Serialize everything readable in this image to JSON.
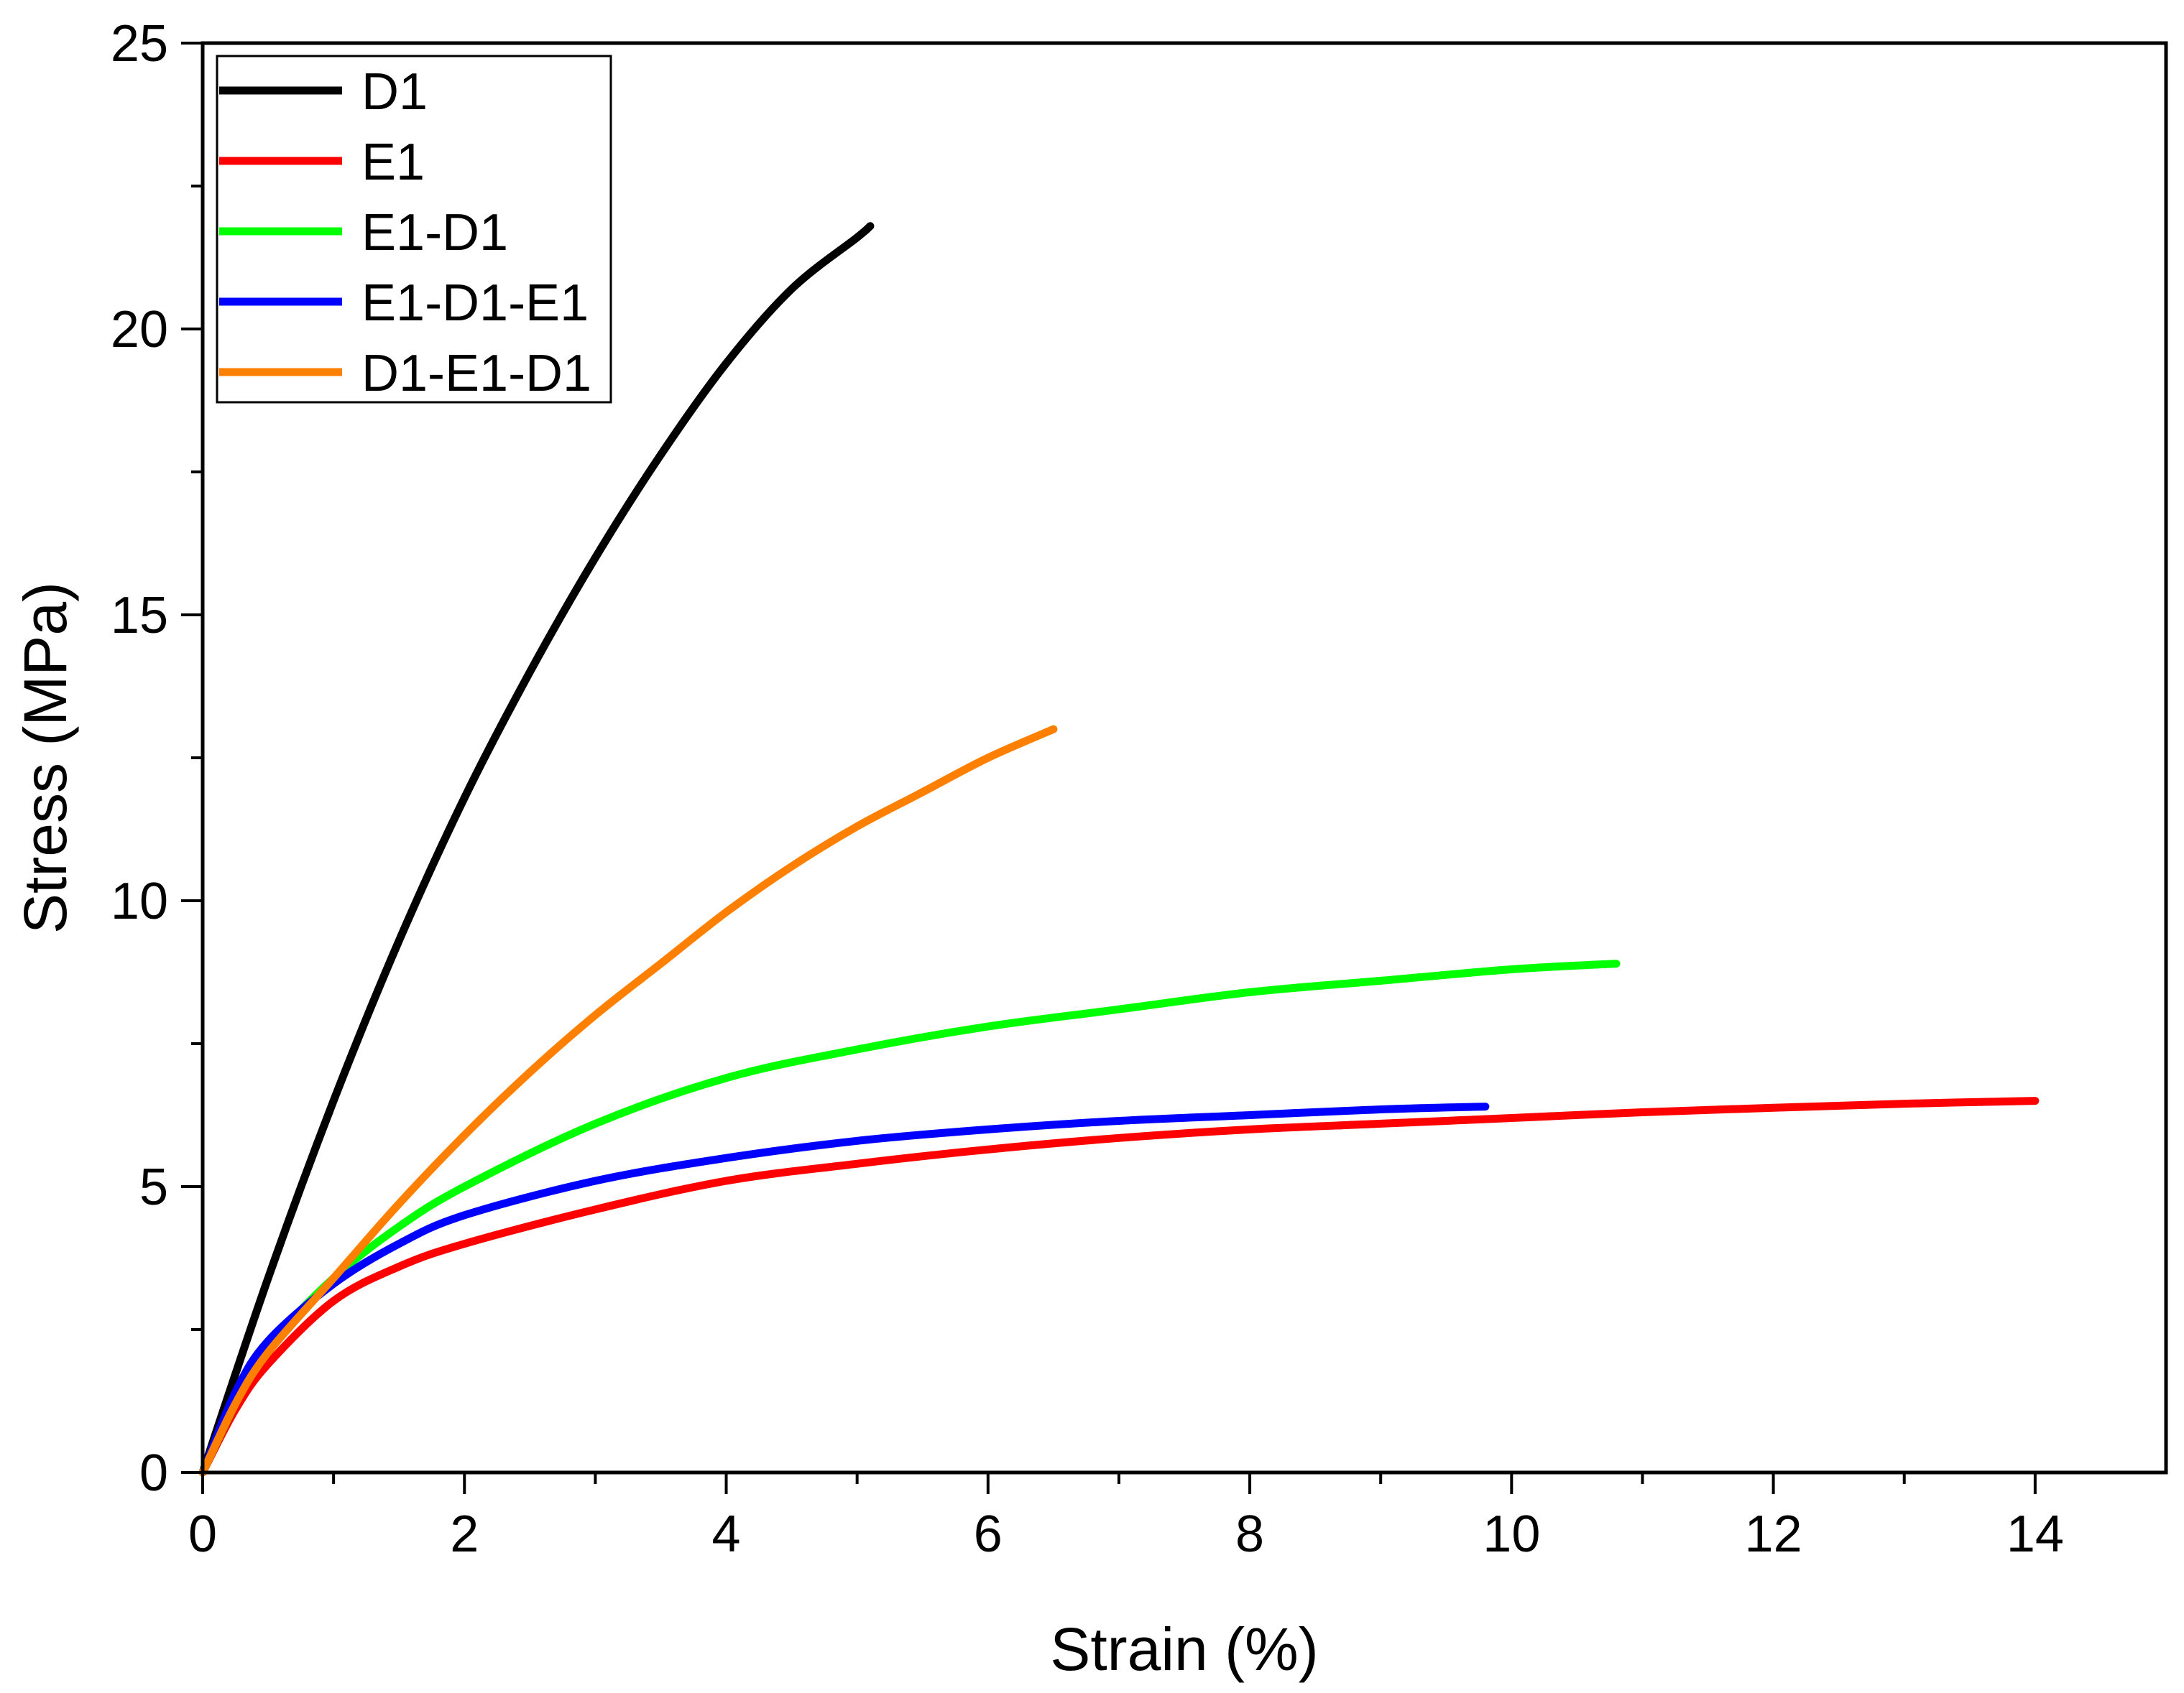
{
  "chart_data": {
    "type": "line",
    "title": "",
    "xlabel": "Strain (%)",
    "ylabel": "Stress (MPa)",
    "xlim": [
      0,
      15
    ],
    "ylim": [
      0,
      25
    ],
    "xticks": [
      0,
      2,
      4,
      6,
      8,
      10,
      12,
      14
    ],
    "yticks": [
      0,
      5,
      10,
      15,
      20,
      25
    ],
    "xtick_labels": [
      "0",
      "2",
      "4",
      "6",
      "8",
      "10",
      "12",
      "14"
    ],
    "ytick_labels": [
      "0",
      "5",
      "10",
      "15",
      "20",
      "25"
    ],
    "grid": false,
    "legend_position": "top-left",
    "series": [
      {
        "name": "D1",
        "color": "#000000",
        "x": [
          0,
          0.5,
          1.0,
          1.5,
          2.0,
          2.5,
          3.0,
          3.5,
          4.0,
          4.5,
          5.0,
          5.1
        ],
        "y": [
          0,
          3.4,
          6.5,
          9.3,
          11.8,
          14.0,
          16.0,
          17.8,
          19.4,
          20.7,
          21.6,
          21.8
        ]
      },
      {
        "name": "E1",
        "color": "#ff0000",
        "x": [
          0,
          0.25,
          0.5,
          1.0,
          1.5,
          2.0,
          3.0,
          4.0,
          5.0,
          6.0,
          7.0,
          8.0,
          9.0,
          10.0,
          11.0,
          12.0,
          13.0,
          14.0
        ],
        "y": [
          0,
          1.1,
          1.9,
          3.0,
          3.6,
          4.0,
          4.6,
          5.1,
          5.4,
          5.65,
          5.85,
          6.0,
          6.1,
          6.2,
          6.3,
          6.38,
          6.45,
          6.5
        ]
      },
      {
        "name": "E1-D1",
        "color": "#00ff00",
        "x": [
          0,
          0.25,
          0.5,
          1.0,
          1.5,
          2.0,
          3.0,
          4.0,
          5.0,
          6.0,
          7.0,
          8.0,
          9.0,
          10.0,
          10.8
        ],
        "y": [
          0,
          1.2,
          2.2,
          3.4,
          4.3,
          5.0,
          6.1,
          6.9,
          7.4,
          7.8,
          8.1,
          8.4,
          8.6,
          8.8,
          8.9
        ]
      },
      {
        "name": "E1-D1-E1",
        "color": "#0000ff",
        "x": [
          0,
          0.25,
          0.5,
          1.0,
          1.5,
          2.0,
          3.0,
          4.0,
          5.0,
          6.0,
          7.0,
          8.0,
          9.0,
          9.8
        ],
        "y": [
          0,
          1.4,
          2.3,
          3.3,
          4.0,
          4.5,
          5.1,
          5.5,
          5.8,
          6.0,
          6.15,
          6.25,
          6.35,
          6.4
        ]
      },
      {
        "name": "D1-E1-D1",
        "color": "#ff8000",
        "x": [
          0,
          0.25,
          0.5,
          1.0,
          1.5,
          2.0,
          2.5,
          3.0,
          3.5,
          4.0,
          4.5,
          5.0,
          5.5,
          6.0,
          6.5
        ],
        "y": [
          0,
          1.2,
          2.1,
          3.4,
          4.7,
          5.9,
          7.0,
          8.0,
          8.9,
          9.8,
          10.6,
          11.3,
          11.9,
          12.5,
          13.0
        ]
      }
    ]
  }
}
